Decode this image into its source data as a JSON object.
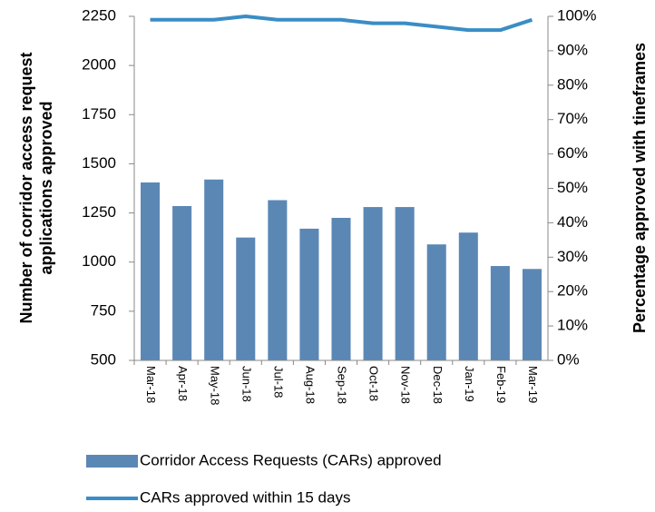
{
  "chart_data": {
    "type": "bar",
    "categories": [
      "Mar-18",
      "Apr-18",
      "May-18",
      "Jun-18",
      "Jul-18",
      "Aug-18",
      "Sep-18",
      "Oct-18",
      "Nov-18",
      "Dec-18",
      "Jan-19",
      "Feb-19",
      "Mar-19"
    ],
    "series": [
      {
        "name": "Corridor Access Requests (CARs) approved",
        "type": "bar",
        "color": "#5b87b5",
        "values": [
          1405,
          1285,
          1420,
          1125,
          1315,
          1170,
          1225,
          1280,
          1280,
          1090,
          1150,
          980,
          965
        ]
      },
      {
        "name": "CARs approved within 15 days",
        "type": "line",
        "axis": "y2",
        "color": "#3a8dc5",
        "values": [
          99,
          99,
          99,
          100,
          99,
          99,
          99,
          98,
          98,
          97,
          96,
          96,
          99
        ]
      }
    ],
    "ylabel": [
      "Number of corridor access request",
      "applications approved"
    ],
    "y2label": "Percentage approved with tineframes",
    "ylim": [
      500,
      2250
    ],
    "yticks": [
      500,
      750,
      1000,
      1250,
      1500,
      1750,
      2000,
      2250
    ],
    "y2lim": [
      0,
      100
    ],
    "y2ticks": [
      {
        "value": 0,
        "label": "0%"
      },
      {
        "value": 10,
        "label": "10%"
      },
      {
        "value": 20,
        "label": "20%"
      },
      {
        "value": 30,
        "label": "30%"
      },
      {
        "value": 40,
        "label": "40%"
      },
      {
        "value": 50,
        "label": "50%"
      },
      {
        "value": 60,
        "label": "60%"
      },
      {
        "value": 70,
        "label": "70%"
      },
      {
        "value": 80,
        "label": "80%"
      },
      {
        "value": 90,
        "label": "90%"
      },
      {
        "value": 100,
        "label": "100%"
      }
    ],
    "grid": false,
    "legend": "bottom"
  }
}
